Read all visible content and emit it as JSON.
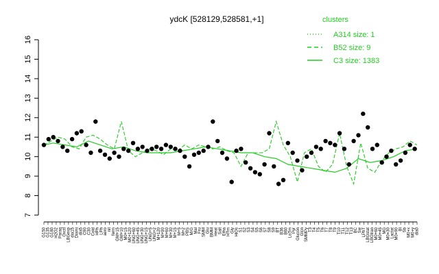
{
  "chart_data": {
    "type": "line",
    "title": "ydcK [528129,528581,+1]",
    "ylim": [
      7,
      16
    ],
    "yticks": [
      7,
      8,
      9,
      10,
      11,
      12,
      13,
      14,
      15,
      16
    ],
    "xlabel": "",
    "ylabel": "",
    "grid": false,
    "legend_position": "top-right",
    "legend": {
      "title": "clusters",
      "entries": [
        {
          "label": "A314 size: 1",
          "style": "dotted"
        },
        {
          "label": "B52 size: 9",
          "style": "dashed"
        },
        {
          "label": "C3 size: 1383",
          "style": "solid"
        }
      ]
    },
    "x_tick_labels": [
      "G150",
      "G135",
      "G180",
      "H2O2",
      "Paraq",
      "Oxctl",
      "LBGexp",
      "dia15",
      "Diami",
      "dia5",
      "C90",
      "C30",
      "Cold",
      "HPh",
      "LPh",
      "aero",
      "nit",
      "ferm",
      "GM+15",
      "GM+10",
      "M0+15",
      "M0+120",
      "UNG+60",
      "UNG+45",
      "UNG+30",
      "UNG+15",
      "UNG+5",
      "UNG+2",
      "M+120",
      "M+90",
      "M+60",
      "M+30",
      "M+15",
      "M+5",
      "M+2",
      "PBS",
      "M/G",
      "Mal",
      "Fru",
      "SMM",
      "Glu",
      "BMM",
      "Heat",
      "Salt",
      "Etha",
      "HTm",
      "Gly",
      "HiOs",
      "S1",
      "S2",
      "S3",
      "S4",
      "S5",
      "S6",
      "S7",
      "S8",
      "S9",
      "BT",
      "B36",
      "B60",
      "LoTm",
      "Pyr",
      "Glucon",
      "Glcn",
      "SMMPy",
      "T3",
      "T4",
      "T5",
      "T6",
      "T7",
      "T8",
      "T9",
      "T10",
      "T11",
      "T12",
      "T13",
      "BC",
      "Sw",
      "LPhT",
      "LBGstat",
      "LBGtran",
      "M0+60",
      "M0+45",
      "MG",
      "M0+30",
      "Lactat",
      "M0+90",
      "BI",
      "Sb",
      "M0+x",
      "M0+y",
      "dia0"
    ],
    "x_range": [
      1,
      160
    ],
    "series": [
      {
        "name": "C3 size: 1383",
        "style": "solid",
        "x": [
          1,
          5,
          10,
          15,
          20,
          25,
          30,
          35,
          40,
          45,
          50,
          55,
          60,
          65,
          70,
          75,
          80,
          85,
          90,
          95,
          100,
          105,
          110,
          115,
          120,
          125,
          130,
          135,
          140,
          145,
          150,
          155,
          160
        ],
        "y": [
          10.6,
          10.7,
          10.6,
          10.5,
          10.8,
          10.6,
          10.4,
          10.5,
          10.3,
          10.2,
          10.2,
          10.2,
          10.3,
          10.4,
          10.5,
          10.4,
          10.3,
          10.2,
          10.2,
          10.0,
          9.9,
          9.6,
          9.5,
          9.4,
          9.3,
          9.2,
          9.4,
          9.9,
          9.7,
          9.8,
          10.0,
          10.3,
          10.4
        ]
      },
      {
        "name": "B52 size: 9",
        "style": "dashed",
        "x": [
          1,
          4,
          7,
          10,
          13,
          16,
          19,
          22,
          25,
          28,
          31,
          34,
          37,
          40,
          43,
          46,
          49,
          52,
          55,
          58,
          61,
          64,
          67,
          70,
          73,
          76,
          79,
          82,
          85,
          88,
          91,
          94,
          97,
          100,
          103,
          106,
          109,
          112,
          115,
          118,
          121,
          124,
          127,
          130,
          133,
          136,
          139,
          142,
          145,
          148,
          151,
          154,
          157,
          160
        ],
        "y": [
          10.6,
          10.8,
          11.0,
          10.9,
          10.5,
          10.4,
          11.0,
          11.1,
          10.9,
          10.6,
          10.4,
          11.8,
          10.3,
          10.0,
          10.2,
          10.4,
          10.3,
          10.1,
          10.4,
          10.3,
          10.6,
          10.4,
          10.6,
          10.5,
          10.4,
          10.5,
          10.3,
          10.2,
          9.5,
          10.2,
          10.2,
          10.2,
          10.4,
          11.8,
          10.6,
          10.0,
          8.7,
          10.2,
          10.4,
          9.5,
          9.2,
          9.6,
          11.2,
          9.5,
          8.6,
          10.7,
          9.4,
          9.2,
          9.8,
          10.2,
          10.4,
          10.5,
          10.8,
          10.6
        ]
      },
      {
        "name": "A314 size: 1",
        "style": "dotted",
        "x": [
          1,
          4,
          7,
          10,
          13,
          16,
          19,
          22,
          25,
          28,
          31,
          34,
          37,
          40,
          43,
          46,
          49,
          52,
          55,
          58,
          61,
          64,
          67,
          70,
          73,
          76,
          79,
          82,
          85,
          88,
          91,
          94,
          97,
          100,
          103,
          106,
          109,
          112,
          115,
          118,
          121,
          124,
          127,
          130,
          133,
          136,
          139,
          142,
          145,
          148,
          151,
          154,
          157,
          160
        ],
        "y": [
          10.6,
          10.8,
          11.0,
          10.9,
          10.5,
          10.4,
          11.0,
          11.1,
          10.9,
          10.6,
          10.4,
          11.8,
          10.3,
          10.0,
          10.2,
          10.4,
          10.3,
          10.1,
          10.4,
          10.3,
          10.6,
          10.4,
          10.6,
          10.5,
          10.4,
          10.5,
          10.3,
          10.2,
          9.5,
          10.2,
          10.2,
          10.2,
          10.4,
          11.8,
          10.6,
          10.0,
          8.7,
          10.2,
          10.4,
          9.5,
          9.2,
          9.6,
          11.2,
          9.5,
          8.6,
          10.7,
          9.4,
          9.2,
          9.8,
          10.2,
          10.4,
          10.5,
          10.8,
          10.6
        ]
      }
    ],
    "points": {
      "x": [
        1,
        3,
        5,
        7,
        9,
        11,
        13,
        15,
        17,
        19,
        21,
        23,
        25,
        27,
        29,
        31,
        33,
        35,
        37,
        39,
        41,
        43,
        45,
        47,
        49,
        51,
        53,
        55,
        57,
        59,
        61,
        63,
        65,
        67,
        69,
        71,
        73,
        75,
        77,
        79,
        81,
        83,
        85,
        87,
        89,
        91,
        93,
        95,
        97,
        99,
        101,
        103,
        105,
        107,
        109,
        111,
        113,
        115,
        117,
        119,
        121,
        123,
        125,
        127,
        129,
        131,
        133,
        135,
        137,
        139,
        141,
        143,
        145,
        147,
        149,
        151,
        153,
        155,
        157,
        159
      ],
      "y": [
        10.6,
        10.9,
        11.0,
        10.8,
        10.5,
        10.3,
        10.9,
        11.2,
        11.3,
        10.6,
        10.2,
        11.8,
        10.3,
        10.1,
        9.9,
        10.2,
        10.0,
        10.4,
        10.3,
        10.7,
        10.4,
        10.5,
        10.3,
        10.4,
        10.5,
        10.4,
        10.6,
        10.5,
        10.4,
        10.3,
        10.0,
        9.5,
        10.1,
        10.2,
        10.3,
        10.5,
        11.8,
        10.8,
        10.2,
        9.9,
        8.7,
        10.3,
        10.4,
        9.7,
        9.4,
        9.2,
        9.1,
        9.6,
        11.2,
        9.5,
        8.6,
        8.8,
        10.7,
        10.2,
        9.8,
        9.3,
        10.0,
        10.2,
        10.5,
        10.4,
        10.8,
        10.7,
        10.6,
        11.2,
        10.4,
        9.6,
        10.8,
        11.1,
        12.2,
        11.5,
        10.4,
        10.6,
        9.7,
        10.0,
        10.3,
        9.6,
        9.8,
        10.2,
        10.6,
        10.4
      ]
    }
  }
}
